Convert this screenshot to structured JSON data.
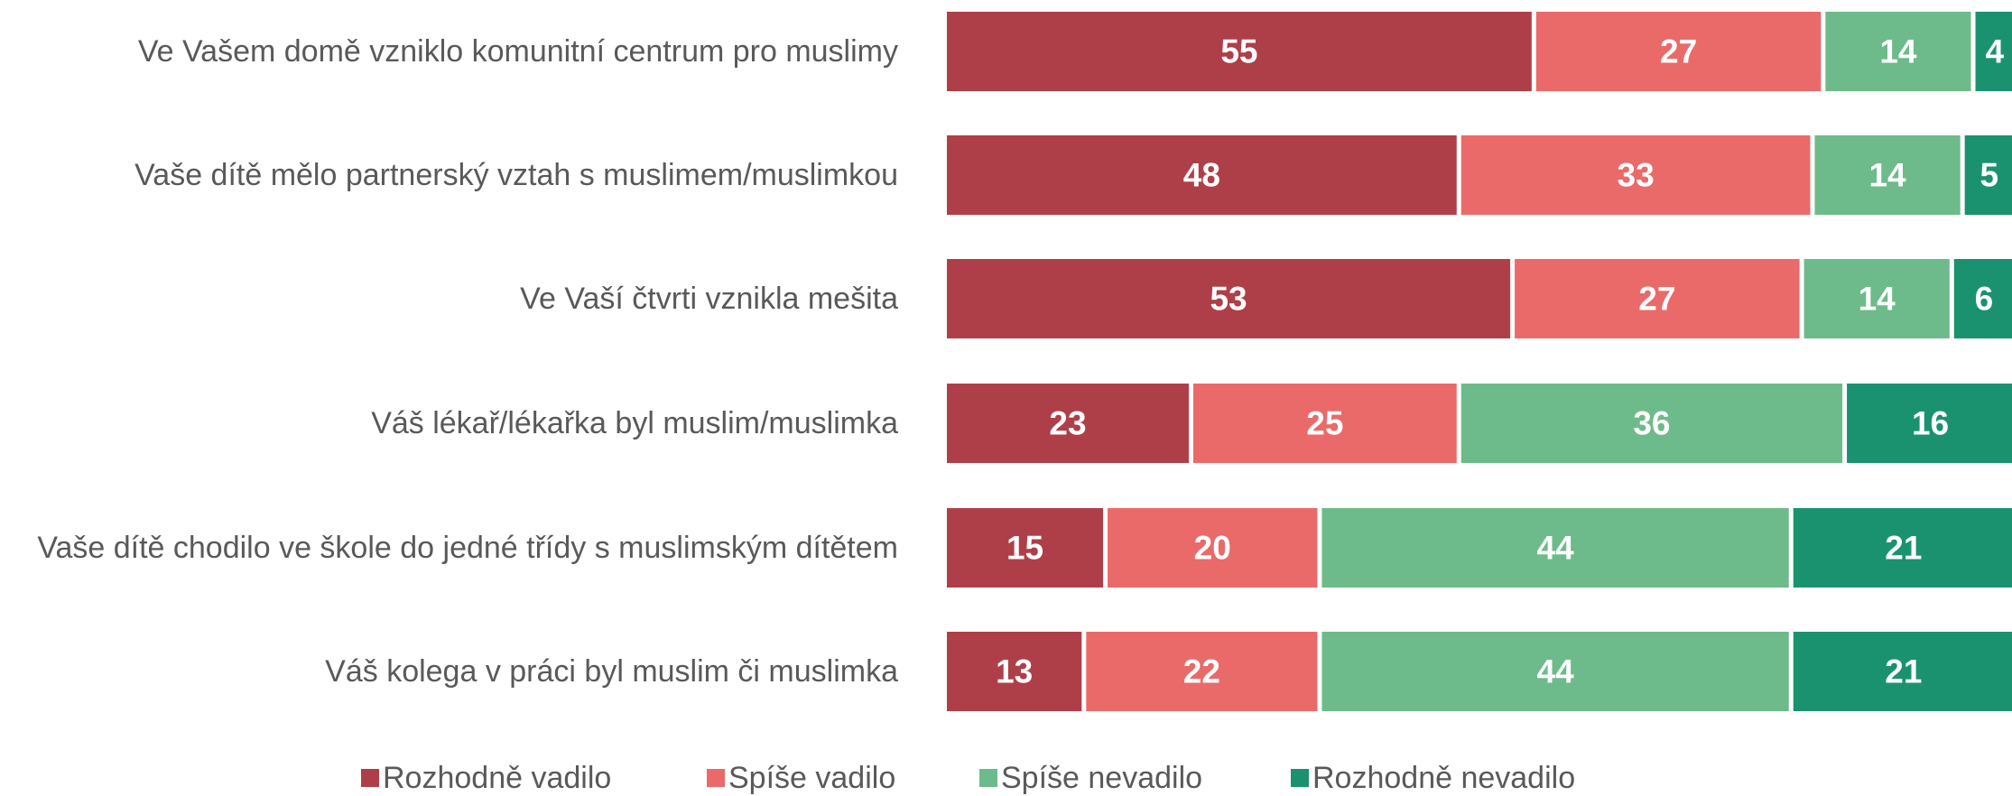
{
  "chart_data": {
    "type": "bar",
    "orientation": "horizontal",
    "stacked": true,
    "categories": [
      "Ve Vašem domě vzniklo komunitní centrum pro muslimy",
      "Vaše dítě mělo partnerský vztah s muslimem/muslimkou",
      "Ve Vaší čtvrti vznikla mešita",
      "Váš lékař/lékařka byl muslim/muslimka",
      "Vaše dítě chodilo ve škole do jedné třídy s muslimským dítětem",
      "Váš kolega v práci byl muslim či muslimka"
    ],
    "series": [
      {
        "name": "Rozhodně vadilo",
        "color": "#ae3f48",
        "values": [
          55,
          48,
          53,
          23,
          15,
          13
        ]
      },
      {
        "name": "Spíše vadilo",
        "color": "#ea6a6a",
        "values": [
          27,
          33,
          27,
          25,
          20,
          22
        ]
      },
      {
        "name": "Spíše nevadilo",
        "color": "#6dbb8a",
        "values": [
          14,
          14,
          14,
          36,
          44,
          44
        ]
      },
      {
        "name": "Rozhodně nevadilo",
        "color": "#1a9270",
        "values": [
          4,
          5,
          6,
          16,
          21,
          21
        ]
      }
    ],
    "legend": "bottom"
  }
}
